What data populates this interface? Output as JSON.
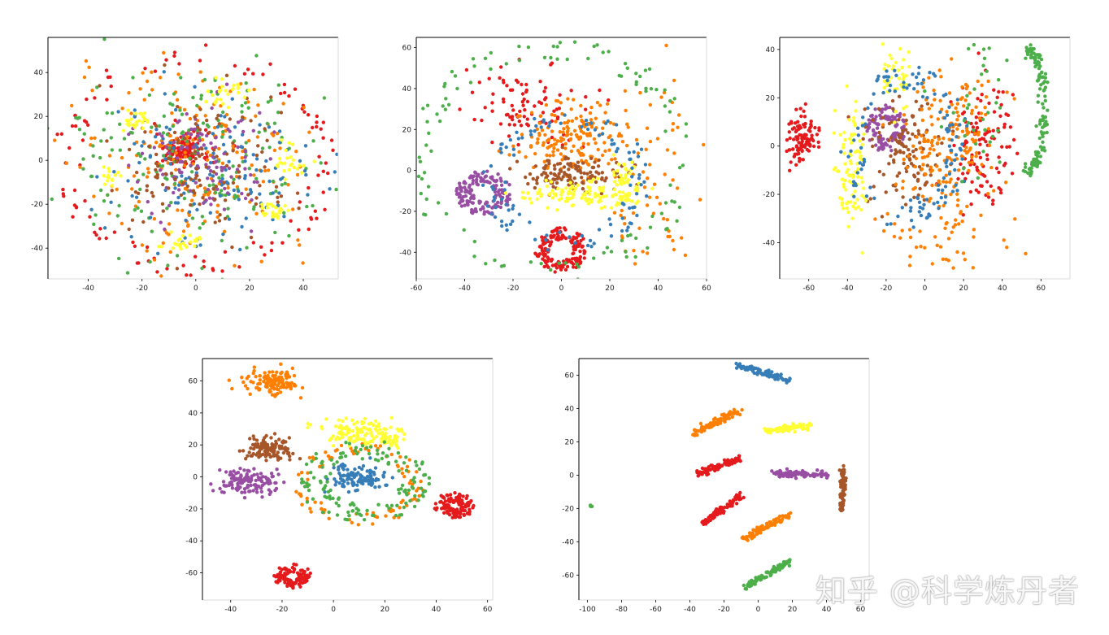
{
  "watermark": "知乎 @科学炼丹者",
  "colors": {
    "red": "#e41a1c",
    "blue": "#377eb8",
    "green": "#4daf4a",
    "purple": "#984ea3",
    "orange": "#ff7f00",
    "yellow": "#ffff33",
    "brown": "#a65628"
  },
  "chart_data": [
    {
      "type": "scatter",
      "xlim": [
        -55,
        53
      ],
      "ylim": [
        -54,
        56
      ],
      "xticks": [
        -40,
        -20,
        0,
        20,
        40
      ],
      "yticks": [
        -40,
        -20,
        0,
        20,
        40
      ],
      "grid": false,
      "series": [
        {
          "color": "red",
          "clusters": [
            {
              "cx": -5,
              "cy": 5,
              "sx": 5,
              "sy": 4,
              "n": 140,
              "shape": "blob"
            },
            {
              "cx": 0,
              "cy": 0,
              "r": 48,
              "n": 110,
              "shape": "ring",
              "width": 10
            }
          ]
        },
        {
          "color": "orange",
          "clusters": [
            {
              "cx": 0,
              "cy": 0,
              "sx": 22,
              "sy": 20,
              "n": 220,
              "shape": "blob"
            }
          ]
        },
        {
          "color": "green",
          "clusters": [
            {
              "cx": 0,
              "cy": 0,
              "sx": 26,
              "sy": 24,
              "n": 200,
              "shape": "blob"
            }
          ]
        },
        {
          "color": "blue",
          "clusters": [
            {
              "cx": 5,
              "cy": -5,
              "sx": 18,
              "sy": 16,
              "n": 140,
              "shape": "blob"
            }
          ]
        },
        {
          "color": "purple",
          "clusters": [
            {
              "cx": 2,
              "cy": 0,
              "sx": 12,
              "sy": 12,
              "n": 120,
              "shape": "blob"
            }
          ]
        },
        {
          "color": "brown",
          "clusters": [
            {
              "cx": 0,
              "cy": -5,
              "sx": 18,
              "sy": 16,
              "n": 120,
              "shape": "blob"
            }
          ]
        },
        {
          "color": "yellow",
          "clusters": [
            {
              "cx": -22,
              "cy": 18,
              "sx": 3,
              "sy": 2,
              "n": 25,
              "shape": "blob"
            },
            {
              "cx": -5,
              "cy": -37,
              "sx": 3,
              "sy": 2,
              "n": 25,
              "shape": "blob"
            },
            {
              "cx": 30,
              "cy": -23,
              "sx": 3,
              "sy": 2,
              "n": 25,
              "shape": "blob"
            },
            {
              "cx": 36,
              "cy": 0,
              "sx": 3,
              "sy": 4,
              "n": 25,
              "shape": "blob"
            },
            {
              "cx": 10,
              "cy": 30,
              "sx": 5,
              "sy": 4,
              "n": 25,
              "shape": "blob"
            },
            {
              "cx": -33,
              "cy": -7,
              "sx": 2,
              "sy": 2,
              "n": 15,
              "shape": "blob"
            }
          ]
        }
      ]
    },
    {
      "type": "scatter",
      "xlim": [
        -60,
        60
      ],
      "ylim": [
        -53,
        65
      ],
      "xticks": [
        -60,
        -40,
        -20,
        0,
        20,
        40,
        60
      ],
      "yticks": [
        -40,
        -20,
        0,
        20,
        40,
        60
      ],
      "grid": false,
      "series": [
        {
          "color": "purple",
          "clusters": [
            {
              "cx": -32,
              "cy": -11,
              "r": 8,
              "n": 150,
              "shape": "ring",
              "width": 7
            }
          ]
        },
        {
          "color": "red",
          "clusters": [
            {
              "cx": 0,
              "cy": -39,
              "r": 8,
              "n": 150,
              "shape": "ring",
              "width": 6
            },
            {
              "cx": -15,
              "cy": 33,
              "sx": 13,
              "sy": 10,
              "n": 90,
              "shape": "blob"
            }
          ]
        },
        {
          "color": "orange",
          "clusters": [
            {
              "cx": 5,
              "cy": 15,
              "sx": 12,
              "sy": 9,
              "n": 170,
              "shape": "blob"
            },
            {
              "cx": 40,
              "cy": 0,
              "sx": 10,
              "sy": 25,
              "n": 70,
              "shape": "blob"
            }
          ]
        },
        {
          "color": "brown",
          "clusters": [
            {
              "cx": 5,
              "cy": -2,
              "sx": 10,
              "sy": 4,
              "n": 130,
              "shape": "blob"
            }
          ]
        },
        {
          "color": "yellow",
          "clusters": [
            {
              "cx": 10,
              "cy": -12,
              "sx": 12,
              "sy": 3,
              "n": 120,
              "shape": "blob"
            },
            {
              "cx": 26,
              "cy": -4,
              "sx": 3,
              "sy": 6,
              "n": 40,
              "shape": "blob"
            }
          ]
        },
        {
          "color": "blue",
          "clusters": [
            {
              "cx": 2,
              "cy": -5,
              "r": 30,
              "n": 110,
              "shape": "ring",
              "width": 10
            }
          ]
        },
        {
          "color": "green",
          "clusters": [
            {
              "cx": -5,
              "cy": 5,
              "r": 55,
              "n": 120,
              "shape": "ring",
              "width": 12
            }
          ]
        }
      ]
    },
    {
      "type": "scatter",
      "xlim": [
        -75,
        75
      ],
      "ylim": [
        -55,
        45
      ],
      "xticks": [
        -60,
        -40,
        -20,
        0,
        20,
        40,
        60
      ],
      "yticks": [
        -40,
        -20,
        0,
        20,
        40
      ],
      "grid": false,
      "series": [
        {
          "color": "red",
          "clusters": [
            {
              "cx": -64,
              "cy": 3,
              "sx": 4,
              "sy": 5,
              "n": 100,
              "shape": "blob"
            },
            {
              "cx": 28,
              "cy": 0,
              "sx": 8,
              "sy": 14,
              "n": 110,
              "shape": "blob"
            }
          ]
        },
        {
          "color": "purple",
          "clusters": [
            {
              "cx": -20,
              "cy": 7,
              "r": 7,
              "n": 110,
              "shape": "ring",
              "width": 6
            }
          ]
        },
        {
          "color": "brown",
          "clusters": [
            {
              "cx": -10,
              "cy": -2,
              "sx": 10,
              "sy": 12,
              "n": 120,
              "shape": "blob"
            }
          ]
        },
        {
          "color": "orange",
          "clusters": [
            {
              "cx": 10,
              "cy": 0,
              "sx": 12,
              "sy": 16,
              "n": 180,
              "shape": "blob"
            },
            {
              "cx": 10,
              "cy": -40,
              "sx": 18,
              "sy": 6,
              "n": 40,
              "shape": "blob"
            }
          ]
        },
        {
          "color": "yellow",
          "clusters": [
            {
              "cx": -38,
              "cy": -12,
              "sx": 4,
              "sy": 13,
              "n": 90,
              "shape": "blob"
            },
            {
              "cx": -15,
              "cy": 28,
              "sx": 5,
              "sy": 6,
              "n": 40,
              "shape": "blob"
            }
          ]
        },
        {
          "color": "blue",
          "clusters": [
            {
              "cx": -10,
              "cy": 0,
              "r": 28,
              "n": 130,
              "shape": "ring",
              "width": 12
            }
          ]
        },
        {
          "color": "green",
          "clusters": [
            {
              "cx": 62,
              "cy": 15,
              "sx": 7,
              "sy": 25,
              "n": 130,
              "shape": "arc"
            },
            {
              "cx": 30,
              "cy": 20,
              "sx": 10,
              "sy": 20,
              "n": 40,
              "shape": "blob"
            }
          ]
        }
      ]
    },
    {
      "type": "scatter",
      "xlim": [
        -51,
        62
      ],
      "ylim": [
        -77,
        74
      ],
      "xticks": [
        -40,
        -20,
        0,
        20,
        40,
        60
      ],
      "yticks": [
        -60,
        -40,
        -20,
        0,
        20,
        40,
        60
      ],
      "grid": false,
      "series": [
        {
          "color": "orange",
          "clusters": [
            {
              "cx": -23,
              "cy": 59,
              "sx": 5,
              "sy": 4,
              "n": 130,
              "shape": "blob"
            },
            {
              "cx": 10,
              "cy": -5,
              "r": 22,
              "n": 90,
              "shape": "ring",
              "width": 8
            }
          ]
        },
        {
          "color": "brown",
          "clusters": [
            {
              "cx": -25,
              "cy": 18,
              "sx": 5,
              "sy": 4,
              "n": 120,
              "shape": "blob"
            }
          ]
        },
        {
          "color": "purple",
          "clusters": [
            {
              "cx": -33,
              "cy": -4,
              "sx": 6,
              "sy": 4,
              "n": 130,
              "shape": "blob"
            }
          ]
        },
        {
          "color": "yellow",
          "clusters": [
            {
              "cx": 10,
              "cy": 28,
              "sx": 8,
              "sy": 4,
              "n": 110,
              "shape": "blob"
            },
            {
              "cx": 22,
              "cy": 23,
              "sx": 3,
              "sy": 2,
              "n": 30,
              "shape": "blob"
            }
          ]
        },
        {
          "color": "blue",
          "clusters": [
            {
              "cx": 10,
              "cy": 0,
              "sx": 5,
              "sy": 4,
              "n": 110,
              "shape": "blob"
            }
          ]
        },
        {
          "color": "green",
          "clusters": [
            {
              "cx": 12,
              "cy": -3,
              "r": 20,
              "n": 140,
              "shape": "ring",
              "width": 12
            }
          ]
        },
        {
          "color": "red",
          "clusters": [
            {
              "cx": 47,
              "cy": -18,
              "r": 5,
              "n": 110,
              "shape": "ring",
              "width": 6
            },
            {
              "cx": -16,
              "cy": -62,
              "r": 5,
              "n": 110,
              "shape": "ring",
              "width": 5
            }
          ]
        }
      ]
    },
    {
      "type": "scatter",
      "xlim": [
        -105,
        65
      ],
      "ylim": [
        -75,
        70
      ],
      "xticks": [
        -100,
        -80,
        -60,
        -40,
        -20,
        0,
        20,
        40,
        60
      ],
      "yticks": [
        -60,
        -40,
        -20,
        0,
        20,
        40,
        60
      ],
      "grid": false,
      "series": [
        {
          "color": "blue",
          "clusters": [
            {
              "shape": "line",
              "x0": -12,
              "y0": 66,
              "x1": 18,
              "y1": 57,
              "n": 90
            }
          ]
        },
        {
          "color": "orange",
          "clusters": [
            {
              "shape": "line",
              "x0": -38,
              "y0": 25,
              "x1": -12,
              "y1": 38,
              "n": 90
            },
            {
              "shape": "line",
              "x0": -8,
              "y0": -38,
              "x1": 18,
              "y1": -24,
              "n": 90
            }
          ]
        },
        {
          "color": "yellow",
          "clusters": [
            {
              "shape": "line",
              "x0": 5,
              "y0": 27,
              "x1": 30,
              "y1": 29,
              "n": 80
            }
          ]
        },
        {
          "color": "red",
          "clusters": [
            {
              "shape": "line",
              "x0": -35,
              "y0": 1,
              "x1": -10,
              "y1": 10,
              "n": 90
            },
            {
              "shape": "line",
              "x0": -33,
              "y0": -29,
              "x1": -10,
              "y1": -12,
              "n": 90
            }
          ]
        },
        {
          "color": "purple",
          "clusters": [
            {
              "shape": "line",
              "x0": 8,
              "y0": 1,
              "x1": 42,
              "y1": 0,
              "n": 90
            }
          ]
        },
        {
          "color": "brown",
          "clusters": [
            {
              "shape": "line",
              "x0": 50,
              "y0": 5,
              "x1": 49,
              "y1": -23,
              "n": 80
            }
          ]
        },
        {
          "color": "green",
          "clusters": [
            {
              "shape": "line",
              "x0": -7,
              "y0": -67,
              "x1": 18,
              "y1": -52,
              "n": 90
            },
            {
              "cx": -98,
              "cy": -19,
              "sx": 0.5,
              "sy": 0.6,
              "n": 4,
              "shape": "blob"
            }
          ]
        }
      ]
    }
  ]
}
